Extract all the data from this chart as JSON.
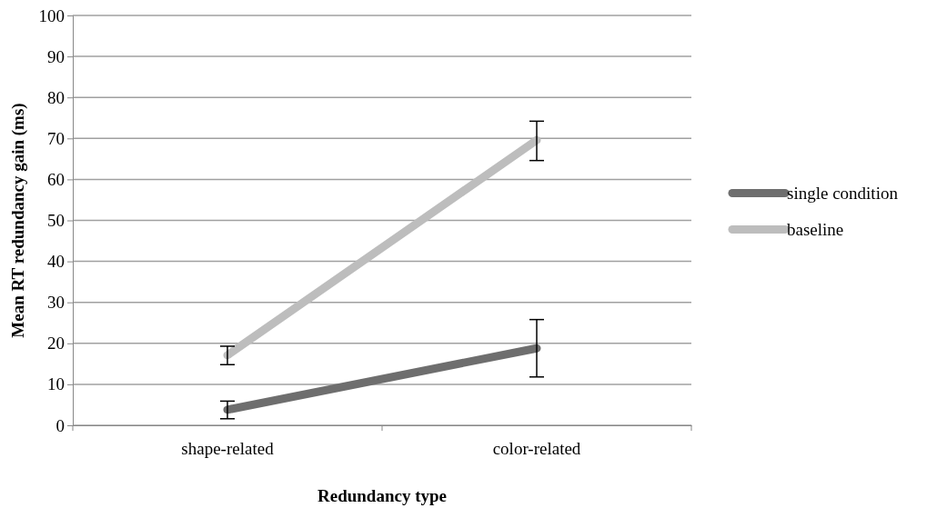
{
  "chart_data": {
    "type": "line",
    "xlabel": "Redundancy type",
    "ylabel": "Mean RT redundancy gain (ms)",
    "categories": [
      "shape-related",
      "color-related"
    ],
    "series": [
      {
        "name": "single condition",
        "color": "#6e6e6e",
        "values": [
          3.8,
          18.8
        ],
        "errors": [
          [
            1.6,
            5.9
          ],
          [
            11.8,
            25.8
          ]
        ]
      },
      {
        "name": "baseline",
        "color": "#bdbdbd",
        "values": [
          17.1,
          69.6
        ],
        "errors": [
          [
            14.8,
            19.3
          ],
          [
            64.6,
            74.2
          ]
        ]
      }
    ],
    "ylim": [
      0,
      100
    ],
    "yticks": [
      0,
      10,
      20,
      30,
      40,
      50,
      60,
      70,
      80,
      90,
      100
    ],
    "grid": "y",
    "legend": "right",
    "marker": "none",
    "line_style": "solid"
  }
}
